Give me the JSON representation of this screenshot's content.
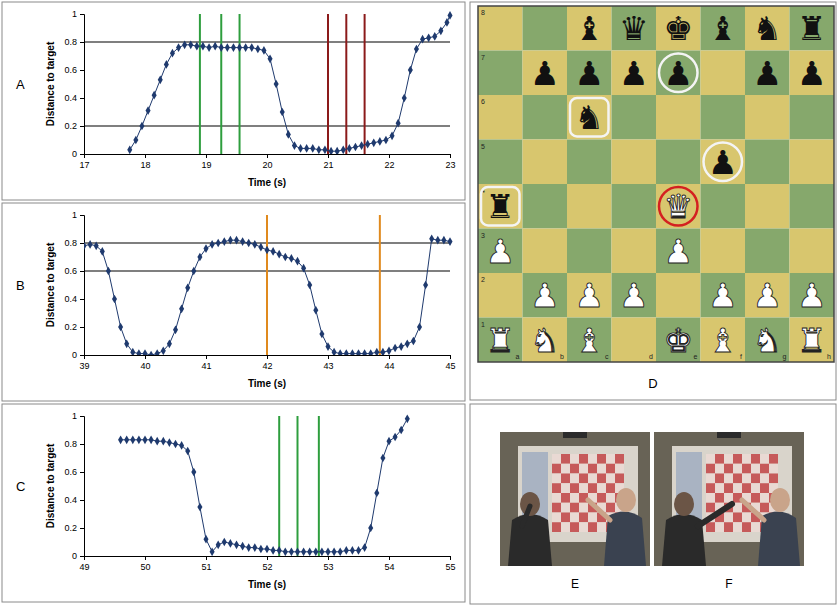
{
  "chart_data": [
    {
      "type": "line",
      "panel": "A",
      "x_label": "Time (s)",
      "y_label": "Distance to target",
      "xlim": [
        17,
        23
      ],
      "xticks": [
        17,
        18,
        19,
        20,
        21,
        22,
        23
      ],
      "ylim": [
        0,
        1
      ],
      "yticks": [
        0,
        0.2,
        0.4,
        0.6,
        0.8,
        1
      ],
      "color": "#1f3a6e",
      "marker": "diamond",
      "line_style": "solid",
      "x": [
        17.75,
        17.85,
        17.95,
        18.05,
        18.15,
        18.25,
        18.35,
        18.45,
        18.55,
        18.65,
        18.75,
        18.85,
        18.95,
        19.05,
        19.15,
        19.25,
        19.35,
        19.45,
        19.55,
        19.65,
        19.75,
        19.85,
        19.95,
        20.05,
        20.15,
        20.25,
        20.35,
        20.45,
        20.55,
        20.65,
        20.75,
        20.85,
        20.95,
        21.05,
        21.15,
        21.25,
        21.35,
        21.45,
        21.55,
        21.65,
        21.75,
        21.85,
        21.95,
        22.05,
        22.15,
        22.25,
        22.35,
        22.45,
        22.55,
        22.65,
        22.75,
        22.85,
        22.95,
        23.0
      ],
      "values": [
        0.03,
        0.1,
        0.2,
        0.31,
        0.42,
        0.53,
        0.64,
        0.72,
        0.76,
        0.78,
        0.78,
        0.77,
        0.77,
        0.76,
        0.77,
        0.76,
        0.76,
        0.76,
        0.76,
        0.76,
        0.76,
        0.75,
        0.74,
        0.68,
        0.5,
        0.3,
        0.14,
        0.06,
        0.04,
        0.04,
        0.04,
        0.03,
        0.03,
        0.02,
        0.02,
        0.03,
        0.04,
        0.05,
        0.06,
        0.07,
        0.08,
        0.09,
        0.1,
        0.13,
        0.22,
        0.4,
        0.6,
        0.75,
        0.82,
        0.83,
        0.84,
        0.88,
        0.94,
        0.99
      ],
      "hlines": [
        0.8,
        0.2
      ],
      "vlines": [
        {
          "x": 18.9,
          "color": "#2e9e3e"
        },
        {
          "x": 19.25,
          "color": "#2e9e3e"
        },
        {
          "x": 19.55,
          "color": "#2e9e3e"
        },
        {
          "x": 21.0,
          "color": "#8b1a1a"
        },
        {
          "x": 21.3,
          "color": "#8b1a1a"
        },
        {
          "x": 21.6,
          "color": "#8b1a1a"
        }
      ]
    },
    {
      "type": "line",
      "panel": "B",
      "x_label": "Time (s)",
      "y_label": "Distance to target",
      "xlim": [
        39,
        45
      ],
      "xticks": [
        39,
        40,
        41,
        42,
        43,
        44,
        45
      ],
      "ylim": [
        0,
        1
      ],
      "yticks": [
        0,
        0.2,
        0.4,
        0.6,
        0.8,
        1
      ],
      "color": "#1f3a6e",
      "marker": "diamond",
      "line_style": "solid",
      "x": [
        39.0,
        39.1,
        39.2,
        39.3,
        39.4,
        39.5,
        39.6,
        39.7,
        39.8,
        39.9,
        40.0,
        40.1,
        40.2,
        40.3,
        40.4,
        40.5,
        40.6,
        40.7,
        40.8,
        40.9,
        41.0,
        41.1,
        41.2,
        41.3,
        41.4,
        41.5,
        41.6,
        41.7,
        41.8,
        41.9,
        42.0,
        42.1,
        42.2,
        42.3,
        42.4,
        42.5,
        42.6,
        42.7,
        42.8,
        42.9,
        43.0,
        43.1,
        43.2,
        43.3,
        43.4,
        43.5,
        43.6,
        43.7,
        43.8,
        43.9,
        44.0,
        44.1,
        44.2,
        44.3,
        44.4,
        44.5,
        44.6,
        44.7,
        44.8,
        44.9,
        45.0
      ],
      "values": [
        0.78,
        0.79,
        0.78,
        0.74,
        0.6,
        0.4,
        0.2,
        0.08,
        0.02,
        0.01,
        0.01,
        0,
        0.01,
        0.03,
        0.08,
        0.18,
        0.33,
        0.48,
        0.6,
        0.7,
        0.76,
        0.79,
        0.8,
        0.81,
        0.82,
        0.82,
        0.81,
        0.8,
        0.79,
        0.77,
        0.75,
        0.74,
        0.72,
        0.7,
        0.69,
        0.67,
        0.62,
        0.5,
        0.32,
        0.15,
        0.06,
        0.02,
        0.01,
        0.01,
        0.01,
        0.01,
        0.01,
        0.01,
        0.02,
        0.02,
        0.03,
        0.05,
        0.06,
        0.08,
        0.1,
        0.2,
        0.5,
        0.83,
        0.82,
        0.82,
        0.81
      ],
      "hlines": [
        0.8,
        0.6
      ],
      "vlines": [
        {
          "x": 42.0,
          "color": "#e08a1e"
        },
        {
          "x": 43.85,
          "color": "#e08a1e"
        }
      ]
    },
    {
      "type": "line",
      "panel": "C",
      "x_label": "Time (s)",
      "y_label": "Distance to target",
      "xlim": [
        49,
        55
      ],
      "xticks": [
        49,
        50,
        51,
        52,
        53,
        54,
        55
      ],
      "ylim": [
        0,
        1
      ],
      "yticks": [
        0,
        0.2,
        0.4,
        0.6,
        0.8,
        1
      ],
      "color": "#1f3a6e",
      "marker": "diamond",
      "line_style": "solid",
      "x": [
        49.6,
        49.7,
        49.8,
        49.9,
        50.0,
        50.1,
        50.2,
        50.3,
        50.4,
        50.5,
        50.6,
        50.7,
        50.8,
        50.9,
        51.0,
        51.1,
        51.2,
        51.3,
        51.4,
        51.5,
        51.6,
        51.7,
        51.8,
        51.9,
        52.0,
        52.1,
        52.2,
        52.3,
        52.4,
        52.5,
        52.6,
        52.7,
        52.8,
        52.9,
        53.0,
        53.1,
        53.2,
        53.3,
        53.4,
        53.5,
        53.6,
        53.7,
        53.8,
        53.9,
        54.0,
        54.1,
        54.2,
        54.3
      ],
      "values": [
        0.83,
        0.83,
        0.83,
        0.83,
        0.83,
        0.83,
        0.82,
        0.82,
        0.81,
        0.8,
        0.79,
        0.75,
        0.6,
        0.35,
        0.12,
        0.03,
        0.08,
        0.1,
        0.09,
        0.08,
        0.07,
        0.06,
        0.06,
        0.05,
        0.05,
        0.04,
        0.04,
        0.03,
        0.03,
        0.03,
        0.03,
        0.03,
        0.03,
        0.03,
        0.03,
        0.03,
        0.03,
        0.04,
        0.04,
        0.04,
        0.06,
        0.2,
        0.45,
        0.7,
        0.82,
        0.85,
        0.9,
        0.98
      ],
      "hlines": [],
      "vlines": [
        {
          "x": 52.2,
          "color": "#2e9e3e"
        },
        {
          "x": 52.5,
          "color": "#2e9e3e"
        },
        {
          "x": 52.85,
          "color": "#2e9e3e"
        }
      ]
    }
  ],
  "board": {
    "label": "D",
    "ranks": [
      "8",
      "7",
      "6",
      "5",
      "4",
      "3",
      "2",
      "1"
    ],
    "files": [
      "a",
      "b",
      "c",
      "d",
      "e",
      "f",
      "g",
      "h"
    ],
    "pieces": [
      {
        "row": 0,
        "col": 2,
        "glyph": "♝",
        "color": "black"
      },
      {
        "row": 0,
        "col": 3,
        "glyph": "♛",
        "color": "black"
      },
      {
        "row": 0,
        "col": 4,
        "glyph": "♚",
        "color": "black"
      },
      {
        "row": 0,
        "col": 5,
        "glyph": "♝",
        "color": "black"
      },
      {
        "row": 0,
        "col": 6,
        "glyph": "♞",
        "color": "black"
      },
      {
        "row": 0,
        "col": 7,
        "glyph": "♜",
        "color": "black"
      },
      {
        "row": 1,
        "col": 1,
        "glyph": "♟",
        "color": "black"
      },
      {
        "row": 1,
        "col": 2,
        "glyph": "♟",
        "color": "black"
      },
      {
        "row": 1,
        "col": 3,
        "glyph": "♟",
        "color": "black"
      },
      {
        "row": 1,
        "col": 4,
        "glyph": "♟",
        "color": "black"
      },
      {
        "row": 1,
        "col": 6,
        "glyph": "♟",
        "color": "black"
      },
      {
        "row": 1,
        "col": 7,
        "glyph": "♟",
        "color": "black"
      },
      {
        "row": 2,
        "col": 2,
        "glyph": "♞",
        "color": "black"
      },
      {
        "row": 3,
        "col": 5,
        "glyph": "♟",
        "color": "black"
      },
      {
        "row": 4,
        "col": 0,
        "glyph": "♜",
        "color": "black"
      },
      {
        "row": 4,
        "col": 4,
        "glyph": "♛",
        "color": "white"
      },
      {
        "row": 5,
        "col": 0,
        "glyph": "♟",
        "color": "white"
      },
      {
        "row": 5,
        "col": 4,
        "glyph": "♟",
        "color": "white"
      },
      {
        "row": 6,
        "col": 1,
        "glyph": "♟",
        "color": "white"
      },
      {
        "row": 6,
        "col": 2,
        "glyph": "♟",
        "color": "white"
      },
      {
        "row": 6,
        "col": 3,
        "glyph": "♟",
        "color": "white"
      },
      {
        "row": 6,
        "col": 5,
        "glyph": "♟",
        "color": "white"
      },
      {
        "row": 6,
        "col": 6,
        "glyph": "♟",
        "color": "white"
      },
      {
        "row": 6,
        "col": 7,
        "glyph": "♟",
        "color": "white"
      },
      {
        "row": 7,
        "col": 0,
        "glyph": "♜",
        "color": "white"
      },
      {
        "row": 7,
        "col": 1,
        "glyph": "♞",
        "color": "white"
      },
      {
        "row": 7,
        "col": 2,
        "glyph": "♝",
        "color": "white"
      },
      {
        "row": 7,
        "col": 4,
        "glyph": "♚",
        "color": "white"
      },
      {
        "row": 7,
        "col": 5,
        "glyph": "♝",
        "color": "white"
      },
      {
        "row": 7,
        "col": 6,
        "glyph": "♞",
        "color": "white"
      },
      {
        "row": 7,
        "col": 7,
        "glyph": "♜",
        "color": "white"
      }
    ],
    "highlights": [
      {
        "row": 1,
        "col": 4,
        "shape": "circle",
        "color": "#f4f4f4"
      },
      {
        "row": 2,
        "col": 2,
        "shape": "square",
        "color": "#f4f4f4"
      },
      {
        "row": 3,
        "col": 5,
        "shape": "circle",
        "color": "#f4f4f4"
      },
      {
        "row": 4,
        "col": 0,
        "shape": "square",
        "color": "#f4f4f4"
      },
      {
        "row": 4,
        "col": 4,
        "shape": "circle",
        "color": "#d42020"
      }
    ]
  },
  "photos": {
    "labels": [
      "E",
      "F"
    ]
  }
}
